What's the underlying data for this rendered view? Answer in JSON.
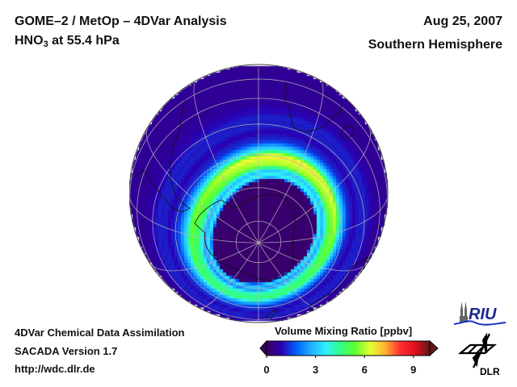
{
  "header": {
    "title_line1": "GOME–2 / MetOp – 4DVar Analysis",
    "species_main": "HNO",
    "species_sub": "3",
    "species_level": " at 55.4 hPa",
    "date": "Aug 25, 2007",
    "region": "Southern Hemisphere"
  },
  "footer": {
    "line1": "4DVar Chemical Data Assimilation",
    "line2": "SACADA Version 1.7",
    "line3": "http://wdc.dlr.de"
  },
  "colorbar": {
    "title": "Volume Mixing Ratio [ppbv]",
    "min": 0,
    "max": 10,
    "ticks": [
      "0",
      "3",
      "6",
      "9"
    ],
    "tick_values": [
      0,
      3,
      6,
      9
    ],
    "colors": [
      "#3a0060",
      "#2a00b0",
      "#0060ff",
      "#20b0ff",
      "#30f0ff",
      "#30ff80",
      "#60ff30",
      "#e8ff30",
      "#ffb030",
      "#ff3030",
      "#e01020",
      "#601818"
    ],
    "extend": "both"
  },
  "chart_data": {
    "type": "heatmap",
    "title": "GOME–2 / MetOp – 4DVar Analysis: HNO3 at 55.4 hPa",
    "projection": "orthographic, south pole view",
    "variable": "HNO3 volume mixing ratio",
    "units": "ppbv",
    "date": "Aug 25, 2007",
    "value_range": [
      0,
      10
    ],
    "features": [
      {
        "name": "polar vortex denitrified core",
        "latitude_range": [
          -90,
          -65
        ],
        "approx_value": 0.2
      },
      {
        "name": "vortex edge collar",
        "latitude_band": -62,
        "approx_value": 2.5
      },
      {
        "name": "mid-latitude maximum ring",
        "latitude_band": -55,
        "approx_value": 5.5,
        "peak_value": 6.5
      },
      {
        "name": "subtropical background",
        "latitude_range": [
          -35,
          -20
        ],
        "approx_value": 1.0
      }
    ]
  },
  "logos": {
    "riu": "RIU",
    "dlr": "DLR"
  }
}
